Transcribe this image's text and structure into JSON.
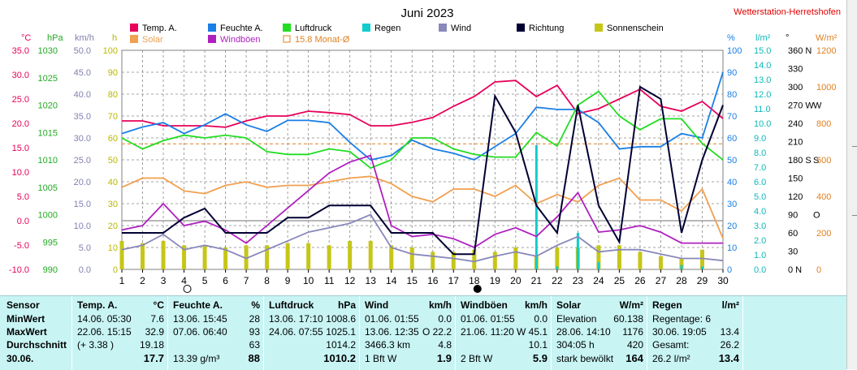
{
  "station_link": "Wetterstation-Herretshofen",
  "title": "Juni 2023",
  "legend": [
    {
      "label": "Temp. A.",
      "color": "#e8005a",
      "kind": "box"
    },
    {
      "label": "Feuchte A.",
      "color": "#1a7fe6",
      "kind": "box"
    },
    {
      "label": "Luftdruck",
      "color": "#22dd22",
      "kind": "box"
    },
    {
      "label": "Regen",
      "color": "#10cccc",
      "kind": "box"
    },
    {
      "label": "Wind",
      "color": "#8888bb",
      "kind": "box"
    },
    {
      "label": "Richtung",
      "color": "#000033",
      "kind": "box"
    },
    {
      "label": "Sonnenschein",
      "color": "#c6c618",
      "kind": "box"
    },
    {
      "label": "Solar",
      "color": "#f0a050",
      "kind": "box"
    },
    {
      "label": "Windböen",
      "color": "#b020c0",
      "kind": "box"
    },
    {
      "label": "15.8 Monat-Ø",
      "color": "#e08020",
      "kind": "outline"
    }
  ],
  "axis_units": {
    "temp": "°C",
    "hpa": "hPa",
    "kmh": "km/h",
    "h": "h",
    "pct": "%",
    "rain": "l/m²",
    "deg": "°",
    "solar": "W/m²"
  },
  "axis_ticks": {
    "temp": [
      "35.0",
      "30.0",
      "25.0",
      "20.0",
      "15.0",
      "10.0",
      "5.0",
      "0.0",
      "-5.0",
      "-10.0"
    ],
    "hpa": [
      "1030",
      "1025",
      "1020",
      "1015",
      "1010",
      "1005",
      "1000",
      "995",
      "990"
    ],
    "kmh": [
      "50.0",
      "45.0",
      "40.0",
      "35.0",
      "30.0",
      "25.0",
      "20.0",
      "15.0",
      "10.0",
      "5.0",
      "0.0"
    ],
    "h": [
      "100",
      "90",
      "80",
      "70",
      "60",
      "50",
      "40",
      "30",
      "20",
      "10",
      "0"
    ],
    "pct": [
      "100",
      "90",
      "80",
      "70",
      "60",
      "50",
      "40",
      "30",
      "20",
      "10",
      "0"
    ],
    "rain": [
      "15.0",
      "14.0",
      "13.0",
      "12.0",
      "11.0",
      "10.0",
      "9.0",
      "8.0",
      "7.0",
      "6.0",
      "5.0",
      "4.0",
      "3.0",
      "2.0",
      "1.0",
      "0.0"
    ],
    "deg": [
      "360 N",
      "330",
      "300",
      "270 W",
      "240",
      "210",
      "180 S",
      "150",
      "120",
      "90",
      "60",
      "30",
      "0 N"
    ],
    "deg_markers": [
      {
        "label": "W",
        "value": 270
      },
      {
        "label": "S",
        "value": 180
      },
      {
        "label": "O",
        "value": 90
      }
    ],
    "solar": [
      "1200",
      "1000",
      "800",
      "600",
      "400",
      "200",
      "0"
    ]
  },
  "chart_data": {
    "type": "line",
    "title": "Juni 2023",
    "x": [
      1,
      2,
      3,
      4,
      5,
      6,
      7,
      8,
      9,
      10,
      11,
      12,
      13,
      14,
      15,
      16,
      17,
      18,
      19,
      20,
      21,
      22,
      23,
      24,
      25,
      26,
      27,
      28,
      29,
      30
    ],
    "xlim": [
      1,
      30
    ],
    "monthly_avg_temp": 15.8,
    "series": [
      {
        "name": "Temp. A.",
        "color": "#e8005a",
        "unit": "°C",
        "ylim": [
          -10,
          35
        ],
        "values": [
          20.5,
          20.5,
          19.5,
          19.5,
          19.5,
          19.2,
          20.5,
          21.5,
          21.5,
          22.5,
          22.2,
          21.8,
          19.5,
          19.5,
          20.2,
          21.2,
          23.5,
          25.5,
          28.5,
          28.8,
          25.5,
          27.8,
          22.0,
          23.0,
          25.0,
          27.0,
          23.5,
          22.5,
          24.5,
          21.0
        ]
      },
      {
        "name": "Feuchte A.",
        "color": "#1a7fe6",
        "unit": "%",
        "ylim": [
          0,
          100
        ],
        "values": [
          62,
          65,
          67,
          62,
          66,
          71,
          66,
          63,
          68,
          68,
          67,
          58,
          50,
          52,
          59,
          55,
          53,
          50,
          56,
          62,
          74,
          73,
          73,
          67,
          55,
          56,
          56,
          62,
          60,
          90
        ]
      },
      {
        "name": "Luftdruck",
        "color": "#22dd22",
        "unit": "hPa",
        "ylim": [
          990,
          1030
        ],
        "values": [
          1014.0,
          1012.0,
          1013.5,
          1014.5,
          1014.0,
          1014.5,
          1014.0,
          1011.5,
          1011.0,
          1011.0,
          1012.0,
          1011.5,
          1008.5,
          1010.0,
          1014.0,
          1014.0,
          1012.0,
          1011.0,
          1010.5,
          1010.5,
          1015.0,
          1012.5,
          1020.0,
          1022.5,
          1018.0,
          1015.5,
          1017.5,
          1017.5,
          1013.0,
          1010.0
        ]
      },
      {
        "name": "Solar",
        "color": "#f0a050",
        "unit": "W/m²",
        "ylim": [
          0,
          1200
        ],
        "values": [
          450,
          500,
          500,
          430,
          415,
          460,
          480,
          450,
          460,
          460,
          480,
          500,
          510,
          470,
          400,
          370,
          440,
          440,
          400,
          460,
          360,
          410,
          370,
          460,
          500,
          380,
          380,
          320,
          440,
          170
        ]
      },
      {
        "name": "Windböen",
        "color": "#b020c0",
        "unit": "km/h",
        "ylim": [
          0,
          50
        ],
        "values": [
          9.0,
          10.0,
          15.0,
          10.0,
          11.0,
          9.0,
          6.0,
          10.0,
          14.0,
          18.0,
          22.0,
          24.5,
          26.0,
          10.0,
          7.5,
          8.0,
          7.0,
          5.0,
          8.0,
          9.5,
          7.5,
          12.0,
          17.5,
          8.5,
          9.0,
          10.0,
          8.5,
          6.0,
          6.0,
          6.0
        ]
      },
      {
        "name": "Wind",
        "color": "#8888bb",
        "unit": "km/h",
        "ylim": [
          0,
          50
        ],
        "values": [
          4.5,
          5.5,
          8.0,
          4.5,
          5.5,
          4.5,
          2.5,
          4.5,
          6.5,
          8.5,
          9.5,
          10.5,
          12.5,
          5.0,
          3.5,
          3.0,
          2.5,
          1.8,
          3.0,
          4.0,
          3.0,
          5.5,
          7.5,
          4.0,
          4.5,
          4.5,
          3.5,
          2.5,
          2.5,
          2.0
        ]
      },
      {
        "name": "Richtung",
        "color": "#000033",
        "unit": "°",
        "ylim": [
          0,
          360
        ],
        "values": [
          60,
          60,
          60,
          85,
          100,
          60,
          60,
          60,
          85,
          85,
          105,
          105,
          105,
          60,
          60,
          60,
          25,
          25,
          285,
          225,
          105,
          60,
          270,
          105,
          45,
          300,
          280,
          60,
          180,
          270
        ]
      }
    ],
    "bars": [
      {
        "name": "Sonnenschein",
        "color": "#c6c618",
        "unit": "h",
        "ylim": [
          0,
          100
        ],
        "values": [
          13,
          12,
          13,
          11,
          11,
          10,
          11,
          11,
          12,
          12,
          11,
          13,
          13,
          11,
          10,
          8,
          8,
          9,
          8,
          10,
          6,
          10,
          10,
          11,
          11,
          8,
          6,
          5,
          9,
          0
        ]
      },
      {
        "name": "Regen",
        "color": "#10cccc",
        "unit": "l/m²",
        "ylim": [
          0,
          15
        ],
        "values": [
          0,
          0,
          0,
          0,
          0,
          0,
          0,
          0,
          0,
          0,
          0,
          0,
          0,
          0,
          0,
          0,
          0,
          0,
          0,
          0,
          8.5,
          0.2,
          2.5,
          0.5,
          0,
          0,
          0,
          0.3,
          0.2,
          0
        ]
      }
    ]
  },
  "table": {
    "sensor": {
      "head": "Sensor",
      "rows": [
        "MinWert",
        "MaxWert",
        "Durchschnitt",
        "30.06."
      ]
    },
    "temp": {
      "head": "Temp. A.",
      "unit": "°C",
      "rows": [
        [
          "14.06.  05:30",
          "7.6"
        ],
        [
          "22.06.  15:15",
          "32.9"
        ],
        [
          "(+ 3.38 )",
          "19.18"
        ],
        [
          "",
          "17.7"
        ]
      ]
    },
    "feuchte": {
      "head": "Feuchte A.",
      "unit": "%",
      "rows": [
        [
          "13.06.  15:45",
          "28"
        ],
        [
          "07.06.  06:40",
          "93"
        ],
        [
          "",
          "63"
        ],
        [
          "13.39 g/m³",
          "88"
        ]
      ]
    },
    "luftdruck": {
      "head": "Luftdruck",
      "unit": "hPa",
      "rows": [
        [
          "13.06.  17:10",
          "1008.6"
        ],
        [
          "24.06.  07:55",
          "1025.1"
        ],
        [
          "",
          "1014.2"
        ],
        [
          "",
          "1010.2"
        ]
      ]
    },
    "wind": {
      "head": "Wind",
      "unit": "km/h",
      "rows": [
        [
          "01.06.  01:55",
          "0.0"
        ],
        [
          "13.06.  12:35",
          "O  22.2"
        ],
        [
          "3466.3 km",
          "4.8"
        ],
        [
          "1 Bft W",
          "1.9"
        ]
      ]
    },
    "windboeen": {
      "head": "Windböen",
      "unit": "km/h",
      "rows": [
        [
          "01.06.  01:55",
          "0.0"
        ],
        [
          "21.06.  11:20",
          "W  45.1"
        ],
        [
          "",
          "10.1"
        ],
        [
          "2 Bft W",
          "5.9"
        ]
      ]
    },
    "solar": {
      "head": "Solar",
      "unit": "W/m²",
      "rows": [
        [
          "Elevation",
          "60.138"
        ],
        [
          "28.06.  14:10",
          "1176"
        ],
        [
          "304:05 h",
          "420"
        ],
        [
          "stark bewölkt",
          "164"
        ]
      ]
    },
    "regen": {
      "head": "Regen",
      "unit": "l/m²",
      "rows": [
        [
          "Regentage: 6",
          ""
        ],
        [
          "30.06.  19:05",
          "13.4"
        ],
        [
          "Gesamt:",
          "26.2"
        ],
        [
          "26.2 l/m²",
          "13.4"
        ]
      ]
    }
  }
}
